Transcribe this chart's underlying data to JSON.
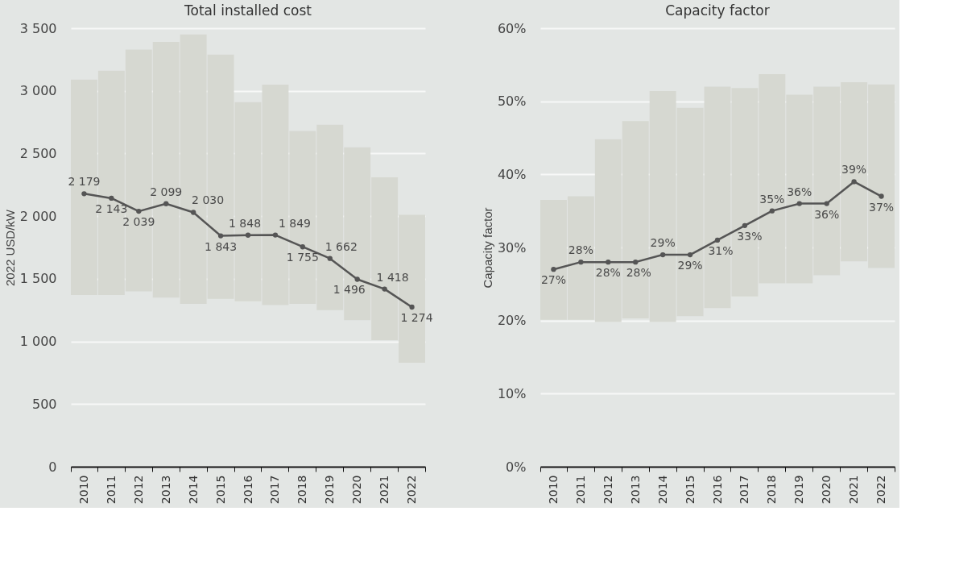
{
  "chart_data": [
    {
      "type": "line",
      "title": "Total installed cost",
      "ylabel": "2022 USD/kW",
      "categories": [
        "2010",
        "2011",
        "2012",
        "2013",
        "2014",
        "2015",
        "2016",
        "2017",
        "2018",
        "2019",
        "2020",
        "2021",
        "2022"
      ],
      "ylim": [
        0,
        3500
      ],
      "yticks": [
        0,
        500,
        {
          "value": 1000,
          "label": "1 000"
        },
        {
          "value": 1500,
          "label": "1 500"
        },
        {
          "value": 2000,
          "label": "2 000"
        },
        {
          "value": 2500,
          "label": "2 500"
        },
        {
          "value": 3000,
          "label": "3 000"
        },
        {
          "value": 3500,
          "label": "3 500"
        }
      ],
      "grid": "y",
      "series": [
        {
          "type": "bar",
          "color": "#d6d8d1",
          "base": [
            1370,
            1370,
            1400,
            1350,
            1300,
            1340,
            1320,
            1290,
            1300,
            1250,
            1170,
            1010,
            830
          ],
          "values": [
            1720,
            1790,
            1930,
            2040,
            2150,
            1950,
            1590,
            1760,
            1380,
            1480,
            1380,
            1300,
            1180
          ]
        },
        {
          "color": "#555555",
          "marker": "circle",
          "values": [
            2179,
            2143,
            2039,
            2099,
            2030,
            1843,
            1848,
            1849,
            1755,
            1662,
            1496,
            1418,
            1274
          ],
          "value_labels": [
            "2 179",
            "2 143",
            "2 039",
            "2 099",
            "2 030",
            "1 843",
            "1 848",
            "1 849",
            "1 755",
            "1 662",
            "1 496",
            "1 418",
            "1 274"
          ]
        }
      ]
    },
    {
      "type": "line",
      "title": "Capacity factor",
      "ylabel": "Capacity factor",
      "categories": [
        "2010",
        "2011",
        "2012",
        "2013",
        "2014",
        "2015",
        "2016",
        "2017",
        "2018",
        "2019",
        "2020",
        "2021",
        "2022"
      ],
      "ylim": [
        0,
        60
      ],
      "yticks": [
        {
          "value": 0,
          "label": "0%"
        },
        {
          "value": 10,
          "label": "10%"
        },
        {
          "value": 20,
          "label": "20%"
        },
        {
          "value": 30,
          "label": "30%"
        },
        {
          "value": 40,
          "label": "40%"
        },
        {
          "value": 50,
          "label": "50%"
        },
        {
          "value": 60,
          "label": "60%"
        }
      ],
      "grid": "y",
      "series": [
        {
          "type": "bar",
          "color": "#d6d8d1",
          "base": [
            20.1,
            20.1,
            19.8,
            20.3,
            19.8,
            20.6,
            21.7,
            23.3,
            25.1,
            25.1,
            26.2,
            28.1,
            27.2
          ],
          "values": [
            16.4,
            16.9,
            25.0,
            27.0,
            31.6,
            28.5,
            30.3,
            28.5,
            28.6,
            25.8,
            25.8,
            24.5,
            25.1
          ]
        },
        {
          "color": "#555555",
          "marker": "circle",
          "values": [
            27,
            28,
            28,
            28,
            29,
            29,
            31,
            33,
            35,
            36,
            36,
            39,
            37
          ],
          "value_labels": [
            "27%",
            "28%",
            "28%",
            "28%",
            "29%",
            "29%",
            "31%",
            "33%",
            "35%",
            "36%",
            "36%",
            "39%",
            "37%"
          ]
        }
      ]
    }
  ]
}
